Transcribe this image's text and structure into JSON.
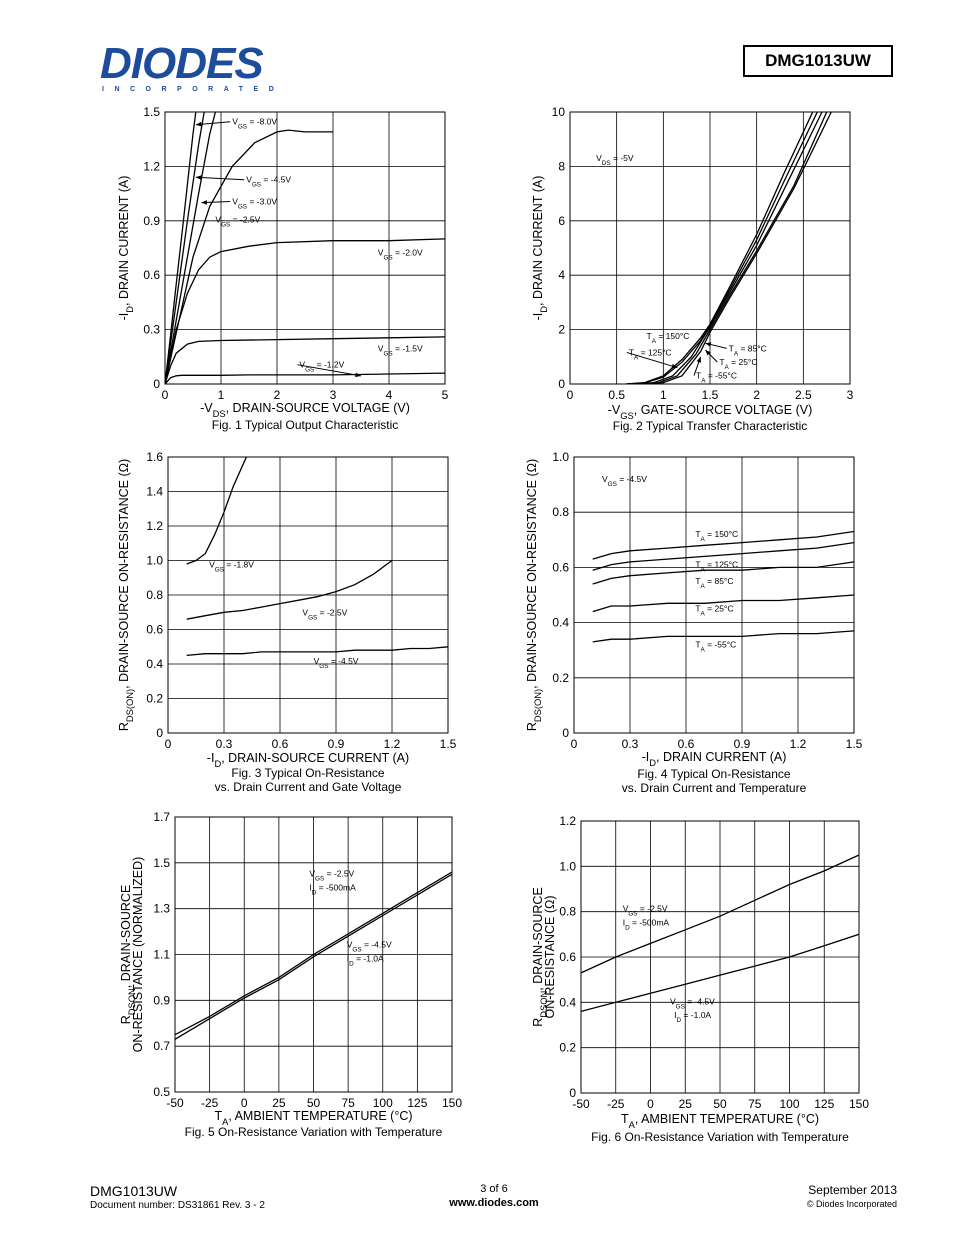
{
  "header": {
    "logo_text": "DIODES",
    "logo_sub": "INCORPORATED",
    "part_number": "DMG1013UW"
  },
  "footer": {
    "part_number": "DMG1013UW",
    "doc_number": "Document number: DS31861 Rev. 3 - 2",
    "page": "3 of 6",
    "website": "www.diodes.com",
    "date": "September 2013",
    "copyright": "© Diodes Incorporated"
  },
  "chart_data": [
    {
      "id": "fig1",
      "type": "line",
      "caption": [
        "Fig. 1 Typical Output Characteristic"
      ],
      "xlabel": "-V_DS, DRAIN-SOURCE VOLTAGE (V)",
      "ylabel": "-I_D, DRAIN CURRENT (A)",
      "xlim": [
        0,
        5
      ],
      "ylim": [
        0,
        1.5
      ],
      "xticks": [
        0,
        1,
        2,
        3,
        4,
        5
      ],
      "yticks": [
        0,
        0.3,
        0.6,
        0.9,
        1.2,
        1.5
      ],
      "xtick_labels": [
        "0",
        "1",
        "2",
        "3",
        "4",
        "5"
      ],
      "ytick_labels": [
        "0",
        "0.3",
        "0.6",
        "0.9",
        "1.2",
        "1.5"
      ],
      "grid": true,
      "series": [
        {
          "name": "V_GS = -8.0V",
          "x": [
            0,
            0.1,
            0.2,
            0.3,
            0.4,
            0.5,
            0.55
          ],
          "y": [
            0,
            0.27,
            0.55,
            0.82,
            1.1,
            1.38,
            1.5
          ]
        },
        {
          "name": "V_GS = -4.5V",
          "x": [
            0,
            0.2,
            0.4,
            0.6,
            0.7
          ],
          "y": [
            0,
            0.45,
            0.9,
            1.32,
            1.5
          ]
        },
        {
          "name": "V_GS = -3.0V",
          "x": [
            0,
            0.2,
            0.4,
            0.6,
            0.8,
            0.9
          ],
          "y": [
            0,
            0.35,
            0.7,
            1.05,
            1.38,
            1.5
          ]
        },
        {
          "name": "V_GS = -2.5V",
          "x": [
            0,
            0.25,
            0.5,
            0.8,
            1.2,
            1.6,
            2.0,
            2.2,
            2.5,
            3.0
          ],
          "y": [
            0,
            0.35,
            0.7,
            0.98,
            1.2,
            1.33,
            1.39,
            1.4,
            1.39,
            1.39
          ]
        },
        {
          "name": "V_GS = -2.0V",
          "x": [
            0,
            0.2,
            0.4,
            0.6,
            0.8,
            1.0,
            1.5,
            2.0,
            3.0,
            4.0,
            5.0
          ],
          "y": [
            0,
            0.3,
            0.5,
            0.63,
            0.7,
            0.73,
            0.76,
            0.78,
            0.79,
            0.79,
            0.8
          ]
        },
        {
          "name": "V_GS = -1.5V",
          "x": [
            0,
            0.1,
            0.2,
            0.4,
            0.6,
            1.0,
            2.0,
            3.0,
            4.0,
            5.0
          ],
          "y": [
            0,
            0.1,
            0.17,
            0.22,
            0.235,
            0.24,
            0.245,
            0.25,
            0.255,
            0.26
          ]
        },
        {
          "name": "V_GS = -1.2V",
          "x": [
            0,
            0.1,
            0.2,
            0.3,
            1.0,
            1.5,
            2.0,
            3.0,
            4.0,
            5.0
          ],
          "y": [
            0,
            0.035,
            0.045,
            0.048,
            0.048,
            0.05,
            0.05,
            0.05,
            0.055,
            0.06
          ]
        }
      ],
      "annotations": [
        {
          "text": "V_GS = -8.0V",
          "x": 1.2,
          "y": 1.43,
          "ax": 0.55,
          "ay": 1.43
        },
        {
          "text": "V_GS = -4.5V",
          "x": 1.45,
          "y": 1.11,
          "ax": 0.55,
          "ay": 1.14
        },
        {
          "text": "V_GS = -3.0V",
          "x": 1.2,
          "y": 0.99,
          "ax": 0.65,
          "ay": 1.0
        },
        {
          "text": "V_GS = -2.5V",
          "x": 0.9,
          "y": 0.89
        },
        {
          "text": "V_GS = -2.0V",
          "x": 3.8,
          "y": 0.71
        },
        {
          "text": "V_GS = -1.5V",
          "x": 3.8,
          "y": 0.18
        },
        {
          "text": "V_GS = -1.2V",
          "x": 2.4,
          "y": 0.09,
          "ax": 3.5,
          "ay": 0.045
        }
      ]
    },
    {
      "id": "fig2",
      "type": "line",
      "caption": [
        "Fig. 2  Typical Transfer Characteristic"
      ],
      "xlabel": "-V_GS, GATE-SOURCE VOLTAGE (V)",
      "ylabel": "-I_D, DRAIN CURRENT (A)",
      "xlim": [
        0,
        3
      ],
      "ylim": [
        0,
        10
      ],
      "xticks": [
        0,
        0.5,
        1,
        1.5,
        2,
        2.5,
        3
      ],
      "yticks": [
        0,
        2,
        4,
        6,
        8,
        10
      ],
      "xtick_labels": [
        "0",
        "0.5",
        "1",
        "1.5",
        "2",
        "2.5",
        "3"
      ],
      "ytick_labels": [
        "0",
        "2",
        "4",
        "6",
        "8",
        "10"
      ],
      "grid": true,
      "series": [
        {
          "name": "T_A = 150°C",
          "x": [
            0.6,
            0.8,
            1.0,
            1.2,
            1.4,
            1.5,
            1.7,
            2.0,
            2.3,
            2.6
          ],
          "y": [
            0,
            0.05,
            0.3,
            0.9,
            1.7,
            2.2,
            3.5,
            5.5,
            7.8,
            10
          ]
        },
        {
          "name": "T_A = 125°C",
          "x": [
            0.6,
            0.8,
            1.0,
            1.2,
            1.4,
            1.5,
            1.7,
            2.0,
            2.3,
            2.65
          ],
          "y": [
            0,
            0.04,
            0.25,
            0.8,
            1.6,
            2.15,
            3.4,
            5.3,
            7.5,
            10
          ]
        },
        {
          "name": "T_A = 85°C",
          "x": [
            0.7,
            0.9,
            1.1,
            1.3,
            1.5,
            1.7,
            2.0,
            2.3,
            2.7
          ],
          "y": [
            0,
            0.05,
            0.3,
            1.0,
            2.1,
            3.3,
            5.1,
            7.2,
            10
          ]
        },
        {
          "name": "T_A = 25°C",
          "x": [
            0.75,
            0.95,
            1.15,
            1.35,
            1.5,
            1.7,
            2.0,
            2.4,
            2.75
          ],
          "y": [
            0,
            0.05,
            0.3,
            1.1,
            2.0,
            3.2,
            4.9,
            7.3,
            10
          ]
        },
        {
          "name": "T_A = -55°C",
          "x": [
            0.8,
            1.0,
            1.2,
            1.4,
            1.5,
            1.7,
            2.0,
            2.4,
            2.8
          ],
          "y": [
            0,
            0.05,
            0.3,
            1.2,
            1.9,
            3.1,
            4.8,
            7.2,
            10
          ]
        }
      ],
      "annotations": [
        {
          "text": "V_DS = -5V",
          "x": 0.28,
          "y": 8.2
        },
        {
          "text": "T_A = 150°C",
          "x": 0.82,
          "y": 1.65
        },
        {
          "text": "T_A = 125°C",
          "x": 0.63,
          "y": 1.05,
          "ax": 1.15,
          "ay": 0.6
        },
        {
          "text": "T_A = 85°C",
          "x": 1.7,
          "y": 1.2,
          "ax": 1.45,
          "ay": 1.5
        },
        {
          "text": "T_A = 25°C",
          "x": 1.6,
          "y": 0.7,
          "ax": 1.45,
          "ay": 1.25
        },
        {
          "text": "T_A = -55°C",
          "x": 1.35,
          "y": 0.2,
          "ax": 1.4,
          "ay": 1.0
        }
      ]
    },
    {
      "id": "fig3",
      "type": "line",
      "caption": [
        "Fig. 3  Typical On-Resistance",
        "vs. Drain Current and Gate Voltage"
      ],
      "xlabel": "-I_D, DRAIN-SOURCE CURRENT (A)",
      "ylabel": "R_DS(ON), DRAIN-SOURCE ON-RESISTANCE (Ω)",
      "xlim": [
        0,
        1.5
      ],
      "ylim": [
        0,
        1.6
      ],
      "xticks": [
        0,
        0.3,
        0.6,
        0.9,
        1.2,
        1.5
      ],
      "yticks": [
        0,
        0.2,
        0.4,
        0.6,
        0.8,
        1.0,
        1.2,
        1.4,
        1.6
      ],
      "xtick_labels": [
        "0",
        "0.3",
        "0.6",
        "0.9",
        "1.2",
        "1.5"
      ],
      "ytick_labels": [
        "0",
        "0.2",
        "0.4",
        "0.6",
        "0.8",
        "1.0",
        "1.2",
        "1.4",
        "1.6"
      ],
      "grid": true,
      "series": [
        {
          "name": "V_GS = -1.8V",
          "x": [
            0.1,
            0.15,
            0.2,
            0.25,
            0.3,
            0.35,
            0.42
          ],
          "y": [
            0.98,
            1.0,
            1.04,
            1.15,
            1.28,
            1.43,
            1.6
          ]
        },
        {
          "name": "V_GS = -2.5V",
          "x": [
            0.1,
            0.2,
            0.3,
            0.4,
            0.5,
            0.6,
            0.7,
            0.8,
            0.9,
            1.0,
            1.1,
            1.2
          ],
          "y": [
            0.66,
            0.68,
            0.7,
            0.71,
            0.73,
            0.75,
            0.77,
            0.79,
            0.82,
            0.86,
            0.92,
            1.0
          ]
        },
        {
          "name": "V_GS = -4.5V",
          "x": [
            0.1,
            0.2,
            0.3,
            0.4,
            0.5,
            0.6,
            0.7,
            0.8,
            0.9,
            1.0,
            1.1,
            1.2,
            1.3,
            1.4,
            1.5
          ],
          "y": [
            0.45,
            0.46,
            0.46,
            0.46,
            0.47,
            0.47,
            0.47,
            0.47,
            0.47,
            0.48,
            0.48,
            0.48,
            0.49,
            0.49,
            0.5
          ]
        }
      ],
      "annotations": [
        {
          "text": "V_GS = -1.8V",
          "x": 0.22,
          "y": 0.96
        },
        {
          "text": "V_GS = -2.5V",
          "x": 0.72,
          "y": 0.68
        },
        {
          "text": "V_GS = -4.5V",
          "x": 0.78,
          "y": 0.4
        }
      ]
    },
    {
      "id": "fig4",
      "type": "line",
      "caption": [
        "Fig. 4 Typical On-Resistance",
        "vs. Drain Current and Temperature"
      ],
      "xlabel": "-I_D, DRAIN CURRENT (A)",
      "ylabel": "R_DS(ON), DRAIN-SOURCE ON-RESISTANCE (Ω)",
      "xlim": [
        0,
        1.5
      ],
      "ylim": [
        0,
        1.0
      ],
      "xticks": [
        0,
        0.3,
        0.6,
        0.9,
        1.2,
        1.5
      ],
      "yticks": [
        0,
        0.2,
        0.4,
        0.6,
        0.8,
        1.0
      ],
      "xtick_labels": [
        "0",
        "0.3",
        "0.6",
        "0.9",
        "1.2",
        "1.5"
      ],
      "ytick_labels": [
        "0",
        "0.2",
        "0.4",
        "0.6",
        "0.8",
        "1.0"
      ],
      "grid": true,
      "series": [
        {
          "name": "T_A = 150°C",
          "x": [
            0.1,
            0.2,
            0.3,
            0.5,
            0.7,
            0.9,
            1.1,
            1.3,
            1.5
          ],
          "y": [
            0.63,
            0.65,
            0.66,
            0.67,
            0.68,
            0.69,
            0.7,
            0.71,
            0.73
          ]
        },
        {
          "name": "T_A = 125°C",
          "x": [
            0.1,
            0.2,
            0.3,
            0.5,
            0.7,
            0.9,
            1.1,
            1.3,
            1.5
          ],
          "y": [
            0.59,
            0.61,
            0.62,
            0.63,
            0.64,
            0.65,
            0.66,
            0.67,
            0.69
          ]
        },
        {
          "name": "T_A = 85°C",
          "x": [
            0.1,
            0.2,
            0.3,
            0.5,
            0.7,
            0.9,
            1.1,
            1.3,
            1.5
          ],
          "y": [
            0.54,
            0.56,
            0.57,
            0.58,
            0.59,
            0.59,
            0.6,
            0.6,
            0.62
          ]
        },
        {
          "name": "T_A = 25°C",
          "x": [
            0.1,
            0.2,
            0.3,
            0.5,
            0.7,
            0.9,
            1.1,
            1.3,
            1.5
          ],
          "y": [
            0.44,
            0.46,
            0.46,
            0.47,
            0.47,
            0.48,
            0.48,
            0.49,
            0.5
          ]
        },
        {
          "name": "T_A = -55°C",
          "x": [
            0.1,
            0.2,
            0.3,
            0.5,
            0.7,
            0.9,
            1.1,
            1.3,
            1.5
          ],
          "y": [
            0.33,
            0.34,
            0.34,
            0.35,
            0.35,
            0.35,
            0.36,
            0.36,
            0.37
          ]
        }
      ],
      "annotations": [
        {
          "text": "V_GS = -4.5V",
          "x": 0.15,
          "y": 0.91
        },
        {
          "text": "T_A = 150°C",
          "x": 0.65,
          "y": 0.71
        },
        {
          "text": "T_A = 125°C",
          "x": 0.65,
          "y": 0.6
        },
        {
          "text": "T_A = 85°C",
          "x": 0.65,
          "y": 0.54
        },
        {
          "text": "T_A = 25°C",
          "x": 0.65,
          "y": 0.44
        },
        {
          "text": "T_A = -55°C",
          "x": 0.65,
          "y": 0.31
        }
      ]
    },
    {
      "id": "fig5",
      "type": "line",
      "caption": [
        "Fig. 5 On-Resistance Variation with Temperature"
      ],
      "xlabel": "T_A, AMBIENT TEMPERATURE (°C)",
      "ylabel": "R_DSON, DRAIN-SOURCE ON-RESISTANCE (NORMALIZED)",
      "xlim": [
        -50,
        150
      ],
      "ylim": [
        0.5,
        1.7
      ],
      "xticks": [
        -50,
        -25,
        0,
        25,
        50,
        75,
        100,
        125,
        150
      ],
      "yticks": [
        0.5,
        0.7,
        0.9,
        1.1,
        1.3,
        1.5,
        1.7
      ],
      "xtick_labels": [
        "-50",
        "-25",
        "0",
        "25",
        "50",
        "75",
        "100",
        "125",
        "150"
      ],
      "ytick_labels": [
        "0.5",
        "0.7",
        "0.9",
        "1.1",
        "1.3",
        "1.5",
        "1.7"
      ],
      "grid": true,
      "series": [
        {
          "name": "V_GS = -2.5V, I_D = -500mA",
          "x": [
            -50,
            -25,
            0,
            25,
            50,
            75,
            100,
            125,
            150
          ],
          "y": [
            0.75,
            0.83,
            0.92,
            1.0,
            1.1,
            1.19,
            1.28,
            1.37,
            1.46
          ]
        },
        {
          "name": "V_GS = -4.5V, I_D = -1.0A",
          "x": [
            -50,
            -25,
            0,
            25,
            50,
            75,
            100,
            125,
            150
          ],
          "y": [
            0.73,
            0.82,
            0.91,
            0.99,
            1.09,
            1.18,
            1.27,
            1.36,
            1.45
          ]
        }
      ],
      "annotations": [
        {
          "text": "V_GS = -2.5V",
          "x": 47,
          "y": 1.44
        },
        {
          "text": "I_D = -500mA",
          "x": 47,
          "y": 1.38
        },
        {
          "text": "V_GS = -4.5V",
          "x": 74,
          "y": 1.13
        },
        {
          "text": "I_D = -1.0A",
          "x": 74,
          "y": 1.07
        }
      ]
    },
    {
      "id": "fig6",
      "type": "line",
      "caption": [
        "Fig. 6 On-Resistance Variation with Temperature"
      ],
      "xlabel": "T_A, AMBIENT TEMPERATURE (°C)",
      "ylabel": "R_DSON, DRAIN-SOURCE ON-RESISTANCE (Ω)",
      "xlim": [
        -50,
        150
      ],
      "ylim": [
        0,
        1.2
      ],
      "xticks": [
        -50,
        -25,
        0,
        25,
        50,
        75,
        100,
        125,
        150
      ],
      "yticks": [
        0,
        0.2,
        0.4,
        0.6,
        0.8,
        1.0,
        1.2
      ],
      "xtick_labels": [
        "-50",
        "-25",
        "0",
        "25",
        "50",
        "75",
        "100",
        "125",
        "150"
      ],
      "ytick_labels": [
        "0",
        "0.2",
        "0.4",
        "0.6",
        "0.8",
        "1.0",
        "1.2"
      ],
      "grid": true,
      "series": [
        {
          "name": "V_GS = -2.5V, I_D = -500mA",
          "x": [
            -50,
            -25,
            0,
            25,
            50,
            75,
            100,
            125,
            150
          ],
          "y": [
            0.53,
            0.6,
            0.66,
            0.72,
            0.78,
            0.85,
            0.92,
            0.98,
            1.05
          ]
        },
        {
          "name": "V_GS = -4.5V, I_D = -1.0A",
          "x": [
            -50,
            -25,
            0,
            25,
            50,
            75,
            100,
            125,
            150
          ],
          "y": [
            0.36,
            0.4,
            0.44,
            0.48,
            0.52,
            0.56,
            0.6,
            0.65,
            0.7
          ]
        }
      ],
      "annotations": [
        {
          "text": "V_GS = -2.5V",
          "x": -20,
          "y": 0.8
        },
        {
          "text": "I_D = -500mA",
          "x": -20,
          "y": 0.74
        },
        {
          "text": "V_GS = -4.5V",
          "x": 14,
          "y": 0.39
        },
        {
          "text": "I_D = -1.0A",
          "x": 17,
          "y": 0.33
        }
      ]
    }
  ]
}
